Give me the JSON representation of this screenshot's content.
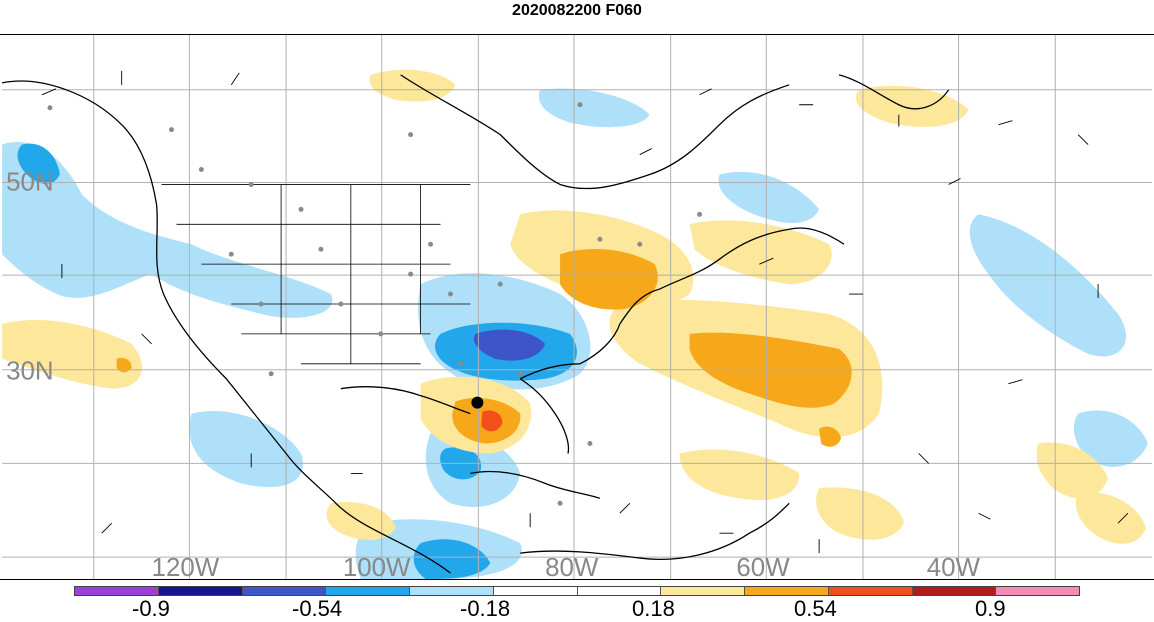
{
  "title": "2020082200 F060",
  "lat_labels": [
    "50N",
    "30N"
  ],
  "lon_labels": [
    "120W",
    "100W",
    "80W",
    "60W",
    "40W"
  ],
  "colorbar": {
    "colors": [
      "#9a3fd8",
      "#151590",
      "#3d55c8",
      "#22a8ea",
      "#aee0fa",
      "#ffffff",
      "#ffffff",
      "#fce79a",
      "#f6a81a",
      "#f2501a",
      "#b01c1c",
      "#f28cb4"
    ],
    "tick_labels": [
      "-0.9",
      "-0.54",
      "-0.18",
      "0.18",
      "0.54",
      "0.9"
    ]
  },
  "colors": {
    "pos_light": "#fce79a",
    "pos_mid": "#f6a81a",
    "pos_strong": "#f2501a",
    "neg_light": "#aee0fa",
    "neg_mid": "#22a8ea",
    "neg_strong": "#3d55c8",
    "grid": "#b0b0b0",
    "coast": "#000000",
    "label_gray": "#888888"
  }
}
